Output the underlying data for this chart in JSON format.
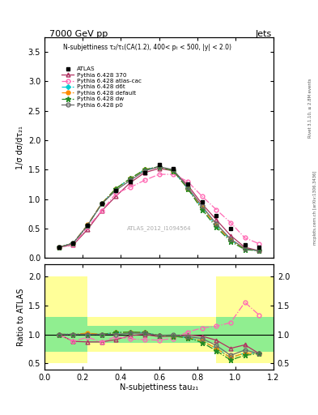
{
  "title_top": "7000 GeV pp",
  "title_right": "Jets",
  "annotation": "N-subjettiness τ₂/τ₁(CA(1.2), 400< pₜ < 500, |y| < 2.0)",
  "watermark": "ATLAS_2012_I1094564",
  "ylabel_main": "1/σ dσ/dτ₂₁",
  "ylabel_ratio": "Ratio to ATLAS",
  "xlabel": "N-subjettiness tau₂₁",
  "right_label_top": "Rivet 3.1.10, ≥ 2.8M events",
  "right_label_bottom": "mcplots.cern.ch [arXiv:1306.3436]",
  "x_main": [
    0.075,
    0.15,
    0.225,
    0.3,
    0.375,
    0.45,
    0.525,
    0.6,
    0.675,
    0.75,
    0.825,
    0.9,
    0.975,
    1.05,
    1.125
  ],
  "atlas_y": [
    0.18,
    0.25,
    0.55,
    0.92,
    1.15,
    1.3,
    1.45,
    1.58,
    1.52,
    1.25,
    0.95,
    0.72,
    0.5,
    0.22,
    0.18
  ],
  "p370_y": [
    0.18,
    0.22,
    0.48,
    0.8,
    1.05,
    1.28,
    1.45,
    1.52,
    1.48,
    1.24,
    0.92,
    0.65,
    0.38,
    0.18,
    0.12
  ],
  "atlas_cac_y": [
    0.18,
    0.22,
    0.52,
    0.8,
    1.1,
    1.2,
    1.32,
    1.42,
    1.42,
    1.3,
    1.05,
    0.82,
    0.6,
    0.34,
    0.24
  ],
  "d6t_y": [
    0.18,
    0.25,
    0.55,
    0.92,
    1.18,
    1.35,
    1.5,
    1.55,
    1.48,
    1.18,
    0.85,
    0.55,
    0.3,
    0.15,
    0.12
  ],
  "default_y": [
    0.18,
    0.25,
    0.56,
    0.93,
    1.18,
    1.35,
    1.5,
    1.55,
    1.48,
    1.18,
    0.85,
    0.55,
    0.3,
    0.15,
    0.12
  ],
  "dw_y": [
    0.18,
    0.25,
    0.55,
    0.92,
    1.18,
    1.35,
    1.5,
    1.55,
    1.48,
    1.18,
    0.82,
    0.52,
    0.28,
    0.14,
    0.12
  ],
  "p0_y": [
    0.18,
    0.25,
    0.55,
    0.92,
    1.15,
    1.32,
    1.48,
    1.55,
    1.5,
    1.2,
    0.88,
    0.58,
    0.32,
    0.16,
    0.12
  ],
  "p370_ratio": [
    1.0,
    0.88,
    0.87,
    0.87,
    0.91,
    0.98,
    1.0,
    0.96,
    0.97,
    0.99,
    0.97,
    0.9,
    0.76,
    0.82,
    0.67
  ],
  "atlas_cac_ratio": [
    1.0,
    0.88,
    0.95,
    0.87,
    0.96,
    0.92,
    0.91,
    0.9,
    0.93,
    1.04,
    1.11,
    1.14,
    1.2,
    1.55,
    1.33
  ],
  "d6t_ratio": [
    1.0,
    1.0,
    1.0,
    1.0,
    1.03,
    1.04,
    1.03,
    0.98,
    0.97,
    0.94,
    0.89,
    0.76,
    0.6,
    0.68,
    0.67
  ],
  "default_ratio": [
    1.0,
    1.0,
    1.02,
    1.0,
    1.03,
    1.04,
    1.03,
    0.98,
    0.97,
    0.94,
    0.89,
    0.76,
    0.6,
    0.68,
    0.67
  ],
  "dw_ratio": [
    1.0,
    1.0,
    1.0,
    1.0,
    1.03,
    1.04,
    1.03,
    0.98,
    0.97,
    0.94,
    0.86,
    0.72,
    0.56,
    0.64,
    0.67
  ],
  "p0_ratio": [
    1.0,
    1.0,
    1.0,
    1.0,
    1.0,
    1.02,
    1.02,
    0.98,
    0.99,
    0.96,
    0.93,
    0.81,
    0.64,
    0.73,
    0.67
  ],
  "color_p370": "#b03060",
  "color_atlas_cac": "#ff69b4",
  "color_d6t": "#00ced1",
  "color_default": "#ff8c00",
  "color_dw": "#228b22",
  "color_p0": "#696969",
  "ylim_main": [
    0.0,
    3.75
  ],
  "ylim_ratio": [
    0.4,
    2.2
  ],
  "xlim": [
    0.0,
    1.2
  ],
  "yticks_main": [
    0.0,
    0.5,
    1.0,
    1.5,
    2.0,
    2.5,
    3.0,
    3.5
  ],
  "yticks_ratio": [
    0.5,
    1.0,
    1.5,
    2.0
  ]
}
